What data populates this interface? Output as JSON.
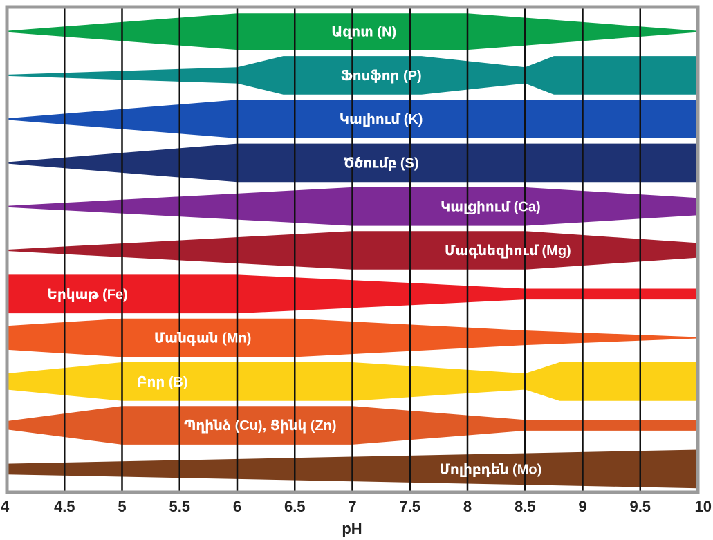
{
  "chart_data": {
    "type": "area",
    "xlabel": "pH",
    "xlim": [
      4,
      10
    ],
    "ticks": [
      "4",
      "4.5",
      "5",
      "5.5",
      "6",
      "6.5",
      "7",
      "7.5",
      "8",
      "8.5",
      "9",
      "9.5",
      "10"
    ],
    "grid": true,
    "bands": [
      {
        "name": "Ազոտ (N)",
        "color": "#0ba24a",
        "label_ph": 7.1,
        "profile": [
          [
            4,
            0.02
          ],
          [
            6,
            0.95
          ],
          [
            8,
            0.95
          ],
          [
            10,
            0.02
          ]
        ]
      },
      {
        "name": "Ֆոսֆոր (P)",
        "color": "#0e8c8a",
        "label_ph": 7.25,
        "profile": [
          [
            4,
            0.02
          ],
          [
            6,
            0.42
          ],
          [
            6.4,
            1.0
          ],
          [
            7.6,
            1.0
          ],
          [
            8.5,
            0.42
          ],
          [
            8.75,
            1.0
          ],
          [
            10,
            1.0
          ]
        ]
      },
      {
        "name": "Կալիում (K)",
        "color": "#1950b4",
        "label_ph": 7.25,
        "profile": [
          [
            4,
            0.02
          ],
          [
            6,
            1.0
          ],
          [
            10,
            1.0
          ]
        ]
      },
      {
        "name": "Ծծումբ (S)",
        "color": "#1e3273",
        "label_ph": 7.25,
        "profile": [
          [
            4,
            0.02
          ],
          [
            6,
            1.0
          ],
          [
            10,
            1.0
          ]
        ]
      },
      {
        "name": "Կալցիում (Ca)",
        "color": "#7d2a96",
        "label_ph": 8.2,
        "profile": [
          [
            4,
            0.02
          ],
          [
            7,
            1.0
          ],
          [
            8.5,
            1.0
          ],
          [
            10,
            0.45
          ]
        ]
      },
      {
        "name": "Մագնեզիում (Mg)",
        "color": "#a51e2d",
        "label_ph": 8.35,
        "profile": [
          [
            4,
            0.02
          ],
          [
            7,
            1.0
          ],
          [
            8.5,
            1.0
          ],
          [
            10,
            0.38
          ]
        ]
      },
      {
        "name": "Երկաթ (Fe)",
        "color": "#ec1c24",
        "label_ph": 4.7,
        "profile": [
          [
            4,
            1.0
          ],
          [
            6,
            1.0
          ],
          [
            7.5,
            0.58
          ],
          [
            8.5,
            0.28
          ],
          [
            10,
            0.28
          ]
        ]
      },
      {
        "name": "Մանգան (Mn)",
        "color": "#ef5a22",
        "label_ph": 5.7,
        "profile": [
          [
            4,
            0.62
          ],
          [
            5,
            1.0
          ],
          [
            6.5,
            1.0
          ],
          [
            8.5,
            0.38
          ],
          [
            10,
            0.02
          ]
        ]
      },
      {
        "name": "Բոր (B)",
        "color": "#fcd116",
        "label_ph": 5.35,
        "profile": [
          [
            4,
            0.42
          ],
          [
            5,
            1.0
          ],
          [
            7,
            1.0
          ],
          [
            8.5,
            0.42
          ],
          [
            8.8,
            1.0
          ],
          [
            10,
            1.0
          ]
        ]
      },
      {
        "name": "Պղինձ (Cu), Ցինկ (Zn)",
        "color": "#e05a26",
        "label_ph": 6.2,
        "profile": [
          [
            4,
            0.22
          ],
          [
            5,
            1.0
          ],
          [
            7,
            1.0
          ],
          [
            8.5,
            0.28
          ],
          [
            10,
            0.28
          ]
        ]
      },
      {
        "name": "Մոլիբդեն (Mo)",
        "color": "#7b3f1c",
        "label_ph": 8.2,
        "profile": [
          [
            4,
            0.28
          ],
          [
            10,
            1.0
          ]
        ]
      }
    ]
  }
}
